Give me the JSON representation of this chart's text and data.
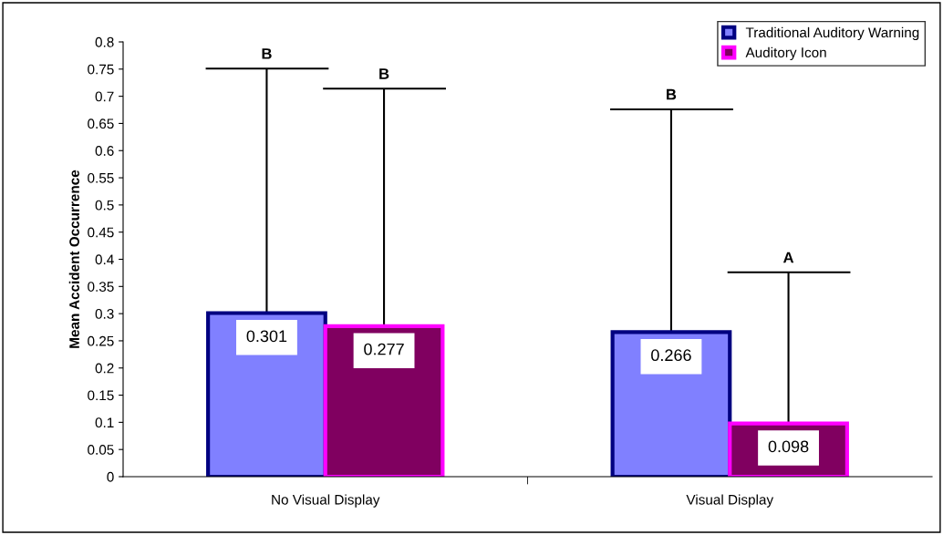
{
  "chart_data": {
    "type": "bar",
    "ylabel": "Mean Accident Occurrence",
    "categories": [
      "No Visual Display",
      "Visual Display"
    ],
    "series": [
      {
        "name": "Traditional Auditory Warning",
        "color": "#8080ff",
        "values": [
          0.301,
          0.266
        ],
        "errors": [
          [
            0.301,
            0.751
          ],
          [
            0.266,
            0.676
          ]
        ]
      },
      {
        "name": "Auditory Icon",
        "color": "#800060",
        "values": [
          0.277,
          0.098
        ],
        "errors": [
          [
            0.277,
            0.714
          ],
          [
            0.098,
            0.376
          ]
        ]
      }
    ],
    "data_labels": true,
    "annotations": [
      "B",
      "B",
      "B",
      "A"
    ],
    "ylim": [
      0,
      0.8
    ],
    "yticks": [
      0,
      0.05,
      0.1,
      0.15,
      0.2,
      0.25,
      0.3,
      0.35,
      0.4,
      0.45,
      0.5,
      0.55,
      0.6,
      0.65,
      0.7,
      0.75,
      0.8
    ],
    "grid": false,
    "legend": "top right"
  }
}
